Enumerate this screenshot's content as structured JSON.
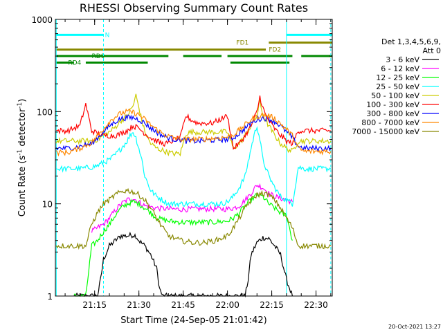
{
  "chart_data": {
    "type": "line",
    "title": "RHESSI Observing Summary Count Rates",
    "xlabel": "Start Time (24-Sep-05 21:01:42)",
    "ylabel_main": "Count Rate (s",
    "ylabel_sup1": "-1",
    "ylabel_mid": " detector",
    "ylabel_sup2": "-1",
    "ylabel_end": ")",
    "yscale": "log",
    "ylim": [
      1,
      1000
    ],
    "xlim_minutes": [
      1.7,
      95.5
    ],
    "x_ticks": [
      {
        "label": "21:15",
        "value": 15
      },
      {
        "label": "21:30",
        "value": 30
      },
      {
        "label": "21:45",
        "value": 45
      },
      {
        "label": "22:00",
        "value": 60
      },
      {
        "label": "22:15",
        "value": 75
      },
      {
        "label": "22:30",
        "value": 90
      }
    ],
    "y_ticks": [
      {
        "label": "1",
        "value": 1
      },
      {
        "label": "10",
        "value": 10
      },
      {
        "label": "100",
        "value": 100
      },
      {
        "label": "1000",
        "value": 1000
      }
    ],
    "legend_header": [
      "Det 1,3,4,5,6,9,",
      "Att 0"
    ],
    "legend_position": "right",
    "series": [
      {
        "name": "3 - 6 keV",
        "color": "#000000",
        "x": [
          8,
          10,
          12,
          14,
          16,
          17,
          18,
          20,
          22,
          24,
          26,
          28,
          29,
          30,
          32,
          34,
          36,
          37,
          38,
          40,
          42,
          44,
          46,
          48,
          50,
          52,
          54,
          56,
          58,
          60,
          62,
          64,
          66,
          67,
          68,
          70,
          72,
          74,
          76,
          78,
          80,
          82
        ],
        "y": [
          1,
          1,
          1,
          1,
          1,
          1.5,
          2.5,
          3.5,
          4,
          4.5,
          4.5,
          4.6,
          4.5,
          4,
          3.5,
          2.8,
          2,
          1.2,
          1,
          1,
          1,
          1,
          1,
          1,
          1,
          1,
          1,
          1,
          1,
          1,
          1,
          1,
          1,
          1.5,
          2.8,
          3.8,
          4.3,
          4.2,
          3.5,
          2.8,
          1.5,
          1
        ]
      },
      {
        "name": "6 - 12 keV",
        "color": "#ff00ff",
        "x": [
          14,
          16,
          18,
          20,
          22,
          24,
          26,
          28,
          30,
          32,
          36,
          40,
          45,
          50,
          55,
          60,
          62,
          64,
          66,
          68,
          70,
          72,
          74,
          76,
          78,
          80,
          82
        ],
        "y": [
          5,
          5.5,
          6,
          7,
          8.5,
          10,
          11,
          11.5,
          10.5,
          9.5,
          9,
          8.8,
          8.7,
          8.8,
          8.8,
          8.8,
          9,
          9.5,
          11,
          13,
          16,
          15,
          13,
          12,
          11.5,
          11,
          10.5
        ]
      },
      {
        "name": "12 - 25 keV",
        "color": "#00ff00",
        "x": [
          8,
          10,
          12,
          14,
          16,
          18,
          20,
          22,
          24,
          26,
          28,
          30,
          32,
          34,
          36,
          40,
          45,
          50,
          55,
          60,
          62,
          64,
          66,
          68,
          70,
          72,
          74,
          76,
          78,
          80,
          82
        ],
        "y": [
          1,
          1,
          1,
          3.5,
          4,
          5,
          6,
          7.5,
          9,
          10,
          10.5,
          10,
          9,
          8,
          7,
          6.5,
          6.3,
          6.3,
          6.3,
          6.5,
          7,
          8,
          9.5,
          11,
          12.5,
          12,
          10,
          9,
          8,
          7.5,
          4
        ]
      },
      {
        "name": "25 - 50 keV",
        "color": "#00ffff",
        "x": [
          2,
          6,
          10,
          14,
          16,
          18,
          20,
          22,
          24,
          26,
          27,
          28,
          29,
          30,
          31,
          32,
          34,
          36,
          38,
          40,
          42,
          45,
          50,
          55,
          58,
          60,
          62,
          64,
          66,
          68,
          69,
          70,
          71,
          72,
          74,
          76,
          78,
          80,
          82,
          84,
          86,
          88,
          90,
          93,
          95
        ],
        "y": [
          24,
          24,
          24,
          25,
          26,
          28,
          30,
          34,
          40,
          48,
          55,
          60,
          52,
          40,
          30,
          20,
          14,
          12,
          11,
          10,
          10,
          10,
          10,
          10,
          10,
          10.5,
          12,
          15,
          20,
          40,
          55,
          70,
          50,
          30,
          20,
          15,
          12,
          11,
          10,
          25,
          24,
          24,
          24,
          24,
          24
        ]
      },
      {
        "name": "50 - 100 keV",
        "color": "#cccc00",
        "x": [
          2,
          6,
          10,
          14,
          16,
          18,
          20,
          22,
          24,
          26,
          28,
          29,
          30,
          31,
          32,
          34,
          36,
          38,
          40,
          42,
          44,
          46,
          48,
          50,
          55,
          60,
          62,
          64,
          66,
          68,
          70,
          71,
          72,
          74,
          76,
          78,
          80,
          82,
          84,
          86,
          90,
          95
        ],
        "y": [
          48,
          48,
          48,
          48,
          50,
          55,
          60,
          68,
          80,
          90,
          115,
          150,
          110,
          80,
          60,
          45,
          40,
          38,
          36,
          35,
          35,
          58,
          60,
          60,
          60,
          60,
          40,
          45,
          55,
          70,
          90,
          130,
          90,
          70,
          55,
          45,
          40,
          37,
          48,
          48,
          48,
          48
        ]
      },
      {
        "name": "100 - 300 keV",
        "color": "#ff0000",
        "x": [
          2,
          6,
          10,
          12,
          14,
          16,
          18,
          20,
          22,
          24,
          26,
          28,
          30,
          32,
          34,
          36,
          38,
          40,
          42,
          44,
          46,
          48,
          50,
          55,
          60,
          62,
          64,
          66,
          68,
          70,
          71,
          72,
          73,
          74,
          76,
          78,
          80,
          82,
          84,
          86,
          90,
          95
        ],
        "y": [
          62,
          62,
          70,
          120,
          62,
          58,
          55,
          55,
          55,
          58,
          62,
          70,
          66,
          58,
          52,
          48,
          45,
          45,
          50,
          52,
          90,
          80,
          75,
          75,
          90,
          40,
          45,
          55,
          70,
          100,
          145,
          110,
          90,
          80,
          65,
          55,
          48,
          45,
          62,
          62,
          62,
          62
        ]
      },
      {
        "name": "300 - 800 keV",
        "color": "#0000ff",
        "x": [
          2,
          6,
          10,
          14,
          16,
          18,
          20,
          22,
          24,
          26,
          28,
          30,
          32,
          34,
          36,
          38,
          40,
          42,
          44,
          46,
          50,
          55,
          60,
          62,
          64,
          66,
          68,
          70,
          72,
          74,
          76,
          78,
          80,
          82,
          84,
          86,
          90,
          95
        ],
        "y": [
          40,
          40,
          42,
          45,
          52,
          60,
          70,
          78,
          84,
          86,
          86,
          82,
          75,
          66,
          60,
          55,
          52,
          50,
          50,
          48,
          48,
          49,
          50,
          52,
          58,
          66,
          75,
          82,
          85,
          84,
          78,
          70,
          60,
          52,
          42,
          40,
          40,
          40
        ]
      },
      {
        "name": "800 - 7000 keV",
        "color": "#ff8800",
        "x": [
          2,
          6,
          10,
          14,
          16,
          18,
          20,
          22,
          24,
          26,
          28,
          30,
          32,
          34,
          36,
          38,
          40,
          42,
          44,
          46,
          50,
          55,
          60,
          62,
          64,
          66,
          68,
          70,
          72,
          74,
          76,
          78,
          80,
          82,
          84,
          86,
          90,
          95
        ],
        "y": [
          36,
          36,
          40,
          46,
          55,
          65,
          78,
          88,
          96,
          100,
          98,
          92,
          82,
          72,
          64,
          58,
          54,
          52,
          50,
          50,
          50,
          51,
          53,
          56,
          63,
          72,
          82,
          88,
          92,
          90,
          84,
          74,
          64,
          55,
          40,
          37,
          37,
          37
        ]
      },
      {
        "name": "7000 - 15000 keV",
        "color": "#888800",
        "x": [
          2,
          6,
          10,
          12,
          14,
          16,
          18,
          20,
          22,
          24,
          26,
          28,
          30,
          32,
          34,
          36,
          38,
          40,
          44,
          48,
          52,
          56,
          60,
          62,
          64,
          66,
          68,
          70,
          72,
          74,
          76,
          78,
          80,
          82,
          84,
          88,
          92,
          95
        ],
        "y": [
          3.5,
          3.5,
          3.5,
          3.5,
          6,
          8,
          10,
          11,
          12.5,
          13.5,
          14,
          13.5,
          12.5,
          11,
          9,
          7,
          5.5,
          4.5,
          4,
          3.8,
          3.8,
          4,
          4.5,
          5.5,
          7,
          9,
          11,
          12.5,
          13,
          12.5,
          11,
          9,
          7,
          5.5,
          3.5,
          3.5,
          3.5,
          3.5
        ]
      }
    ],
    "state_bars": [
      {
        "label": "N",
        "color": "#00ffff",
        "y": 680,
        "segments": [
          [
            2,
            18
          ],
          [
            80,
            95.5
          ]
        ],
        "label_at": 18.5
      },
      {
        "label": "FD1",
        "color": "#888800",
        "y": 560,
        "segments": [
          [
            74,
            95.5
          ]
        ],
        "label_at": 63
      },
      {
        "label": "FD2",
        "color": "#888800",
        "y": 470,
        "segments": [
          [
            2,
            73
          ]
        ],
        "label_at": 74
      },
      {
        "label": "RD0",
        "color": "#008800",
        "y": 400,
        "segments": [
          [
            2,
            40
          ],
          [
            45,
            58
          ],
          [
            60,
            82
          ],
          [
            85,
            95.5
          ]
        ],
        "label_at": 14
      },
      {
        "label": "RD4",
        "color": "#008800",
        "y": 340,
        "segments": [
          [
            2,
            8
          ],
          [
            12,
            33
          ],
          [
            61,
            81
          ]
        ],
        "label_at": 6
      }
    ],
    "vertical_markers": [
      {
        "x": 2,
        "color": "#00ffff",
        "style": "solid"
      },
      {
        "x": 18,
        "color": "#00ffff",
        "style": "dashed"
      },
      {
        "x": 80,
        "color": "#00ffff",
        "style": "solid"
      },
      {
        "x": 95,
        "color": "#00ffff",
        "style": "dashed"
      }
    ],
    "timestamp": "20-Oct-2021 13:27"
  }
}
